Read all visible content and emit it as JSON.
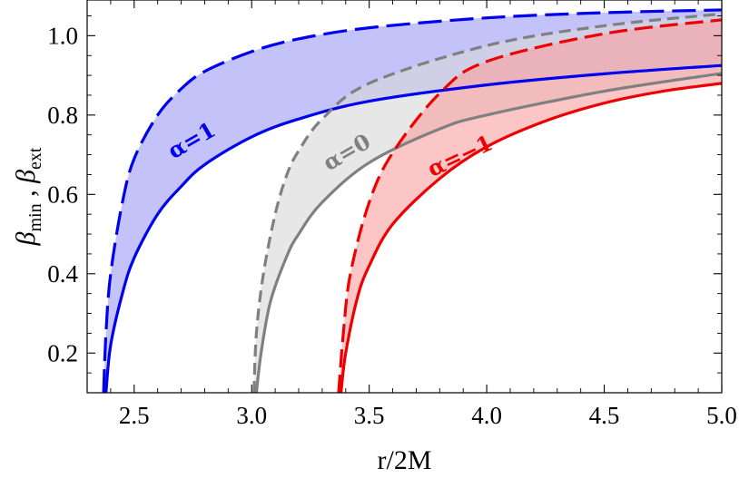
{
  "chart_data": {
    "type": "line",
    "title": "",
    "xlabel": "r/2M",
    "ylabel": {
      "main_left": "β",
      "sub_left": "min",
      "separator": " , ",
      "main_right": "β",
      "sub_right": "ext"
    },
    "xlim": [
      2.3,
      5.0
    ],
    "ylim": [
      0.1,
      1.09
    ],
    "x_ticks": [
      2.5,
      3.0,
      3.5,
      4.0,
      4.5,
      5.0
    ],
    "x_tick_labels": [
      "2.5",
      "3.0",
      "3.5",
      "4.0",
      "4.5",
      "5.0"
    ],
    "y_ticks": [
      0.2,
      0.4,
      0.6,
      0.8,
      1.0
    ],
    "y_tick_labels": [
      "0.2",
      "0.4",
      "0.6",
      "0.8",
      "1.0"
    ],
    "grid": false,
    "legend": "none",
    "series": [
      {
        "label": "α=1",
        "color": "#0000ee",
        "fill_color": "#b9b9f8",
        "fill_opacity": 0.85,
        "min_curve": [
          [
            2.38,
            0.1
          ],
          [
            2.4,
            0.22
          ],
          [
            2.45,
            0.35
          ],
          [
            2.5,
            0.44
          ],
          [
            2.6,
            0.55
          ],
          [
            2.7,
            0.62
          ],
          [
            2.8,
            0.675
          ],
          [
            3.0,
            0.745
          ],
          [
            3.2,
            0.79
          ],
          [
            3.5,
            0.835
          ],
          [
            4.0,
            0.876
          ],
          [
            4.5,
            0.904
          ],
          [
            5.0,
            0.925
          ]
        ],
        "ext_curve": [
          [
            2.37,
            0.1
          ],
          [
            2.38,
            0.25
          ],
          [
            2.4,
            0.4
          ],
          [
            2.45,
            0.58
          ],
          [
            2.5,
            0.69
          ],
          [
            2.6,
            0.8
          ],
          [
            2.7,
            0.866
          ],
          [
            2.8,
            0.91
          ],
          [
            3.0,
            0.96
          ],
          [
            3.2,
            0.992
          ],
          [
            3.5,
            1.02
          ],
          [
            4.0,
            1.045
          ],
          [
            4.5,
            1.058
          ],
          [
            5.0,
            1.065
          ]
        ]
      },
      {
        "label": "α=0",
        "color": "#808080",
        "fill_color": "#d7d7d7",
        "fill_opacity": 0.6,
        "min_curve": [
          [
            3.02,
            0.1
          ],
          [
            3.04,
            0.2
          ],
          [
            3.08,
            0.33
          ],
          [
            3.15,
            0.445
          ],
          [
            3.2,
            0.5
          ],
          [
            3.3,
            0.58
          ],
          [
            3.5,
            0.68
          ],
          [
            3.8,
            0.765
          ],
          [
            4.0,
            0.8
          ],
          [
            4.5,
            0.86
          ],
          [
            5.0,
            0.905
          ]
        ],
        "ext_curve": [
          [
            3.01,
            0.1
          ],
          [
            3.02,
            0.25
          ],
          [
            3.05,
            0.4
          ],
          [
            3.1,
            0.55
          ],
          [
            3.15,
            0.65
          ],
          [
            3.2,
            0.71
          ],
          [
            3.3,
            0.79
          ],
          [
            3.5,
            0.88
          ],
          [
            4.0,
            0.975
          ],
          [
            4.5,
            1.025
          ],
          [
            5.0,
            1.055
          ]
        ]
      },
      {
        "label": "α=−1",
        "color": "#ee0000",
        "fill_color": "#fca0a0",
        "fill_opacity": 0.6,
        "min_curve": [
          [
            3.38,
            0.1
          ],
          [
            3.4,
            0.2
          ],
          [
            3.45,
            0.34
          ],
          [
            3.5,
            0.42
          ],
          [
            3.6,
            0.525
          ],
          [
            3.8,
            0.64
          ],
          [
            4.0,
            0.72
          ],
          [
            4.25,
            0.785
          ],
          [
            4.5,
            0.83
          ],
          [
            4.75,
            0.86
          ],
          [
            5.0,
            0.88
          ]
        ],
        "ext_curve": [
          [
            3.37,
            0.1
          ],
          [
            3.39,
            0.25
          ],
          [
            3.42,
            0.4
          ],
          [
            3.5,
            0.58
          ],
          [
            3.6,
            0.705
          ],
          [
            3.8,
            0.855
          ],
          [
            4.0,
            0.935
          ],
          [
            4.5,
            1.005
          ],
          [
            5.0,
            1.04
          ]
        ]
      }
    ],
    "annotations": [
      {
        "text": "α=1",
        "x": 2.76,
        "y": 0.72,
        "color": "#0000ee",
        "rotate": -30
      },
      {
        "text": "α=0",
        "x": 3.42,
        "y": 0.69,
        "color": "#808080",
        "rotate": -30
      },
      {
        "text": "α=−1",
        "x": 3.9,
        "y": 0.68,
        "color": "#ee0000",
        "rotate": -25
      }
    ]
  }
}
